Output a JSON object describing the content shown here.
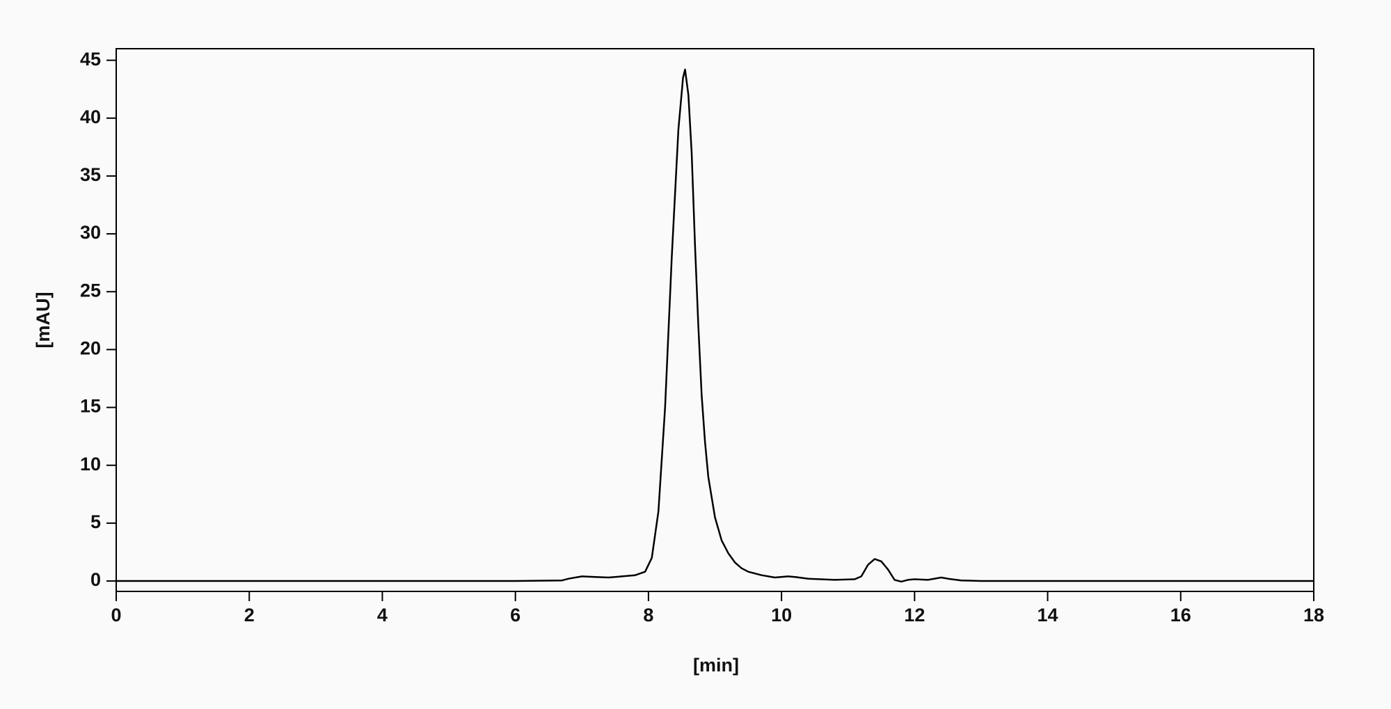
{
  "chart_data": {
    "type": "line",
    "x_label": "[min]",
    "y_label": "[mAU]",
    "xlim": [
      0,
      18
    ],
    "ylim": [
      -0.9,
      46
    ],
    "xticks": [
      0,
      2,
      4,
      6,
      8,
      10,
      12,
      14,
      16,
      18
    ],
    "yticks": [
      0,
      5,
      10,
      15,
      20,
      25,
      30,
      35,
      40,
      45
    ],
    "series": [
      {
        "color": "#000000",
        "x": [
          0,
          2,
          4,
          6,
          6.7,
          6.8,
          7.0,
          7.2,
          7.4,
          7.6,
          7.8,
          7.95,
          8.05,
          8.15,
          8.25,
          8.35,
          8.45,
          8.52,
          8.55,
          8.6,
          8.65,
          8.7,
          8.75,
          8.8,
          8.85,
          8.9,
          9.0,
          9.1,
          9.2,
          9.3,
          9.4,
          9.5,
          9.7,
          9.9,
          10.1,
          10.2,
          10.4,
          10.8,
          11.1,
          11.2,
          11.3,
          11.4,
          11.5,
          11.6,
          11.7,
          11.8,
          11.9,
          12.0,
          12.2,
          12.4,
          12.5,
          12.7,
          13,
          14,
          16,
          18
        ],
        "values": [
          0,
          0,
          0,
          0,
          0.05,
          0.2,
          0.4,
          0.35,
          0.3,
          0.4,
          0.5,
          0.8,
          2,
          6,
          15,
          28,
          39,
          43.5,
          44.2,
          42,
          37,
          29,
          22,
          16,
          12,
          9,
          5.5,
          3.5,
          2.4,
          1.6,
          1.1,
          0.8,
          0.5,
          0.3,
          0.4,
          0.35,
          0.2,
          0.1,
          0.15,
          0.4,
          1.4,
          1.9,
          1.7,
          1.0,
          0.1,
          -0.05,
          0.1,
          0.15,
          0.1,
          0.3,
          0.2,
          0.05,
          0,
          0,
          0,
          0
        ]
      }
    ]
  }
}
